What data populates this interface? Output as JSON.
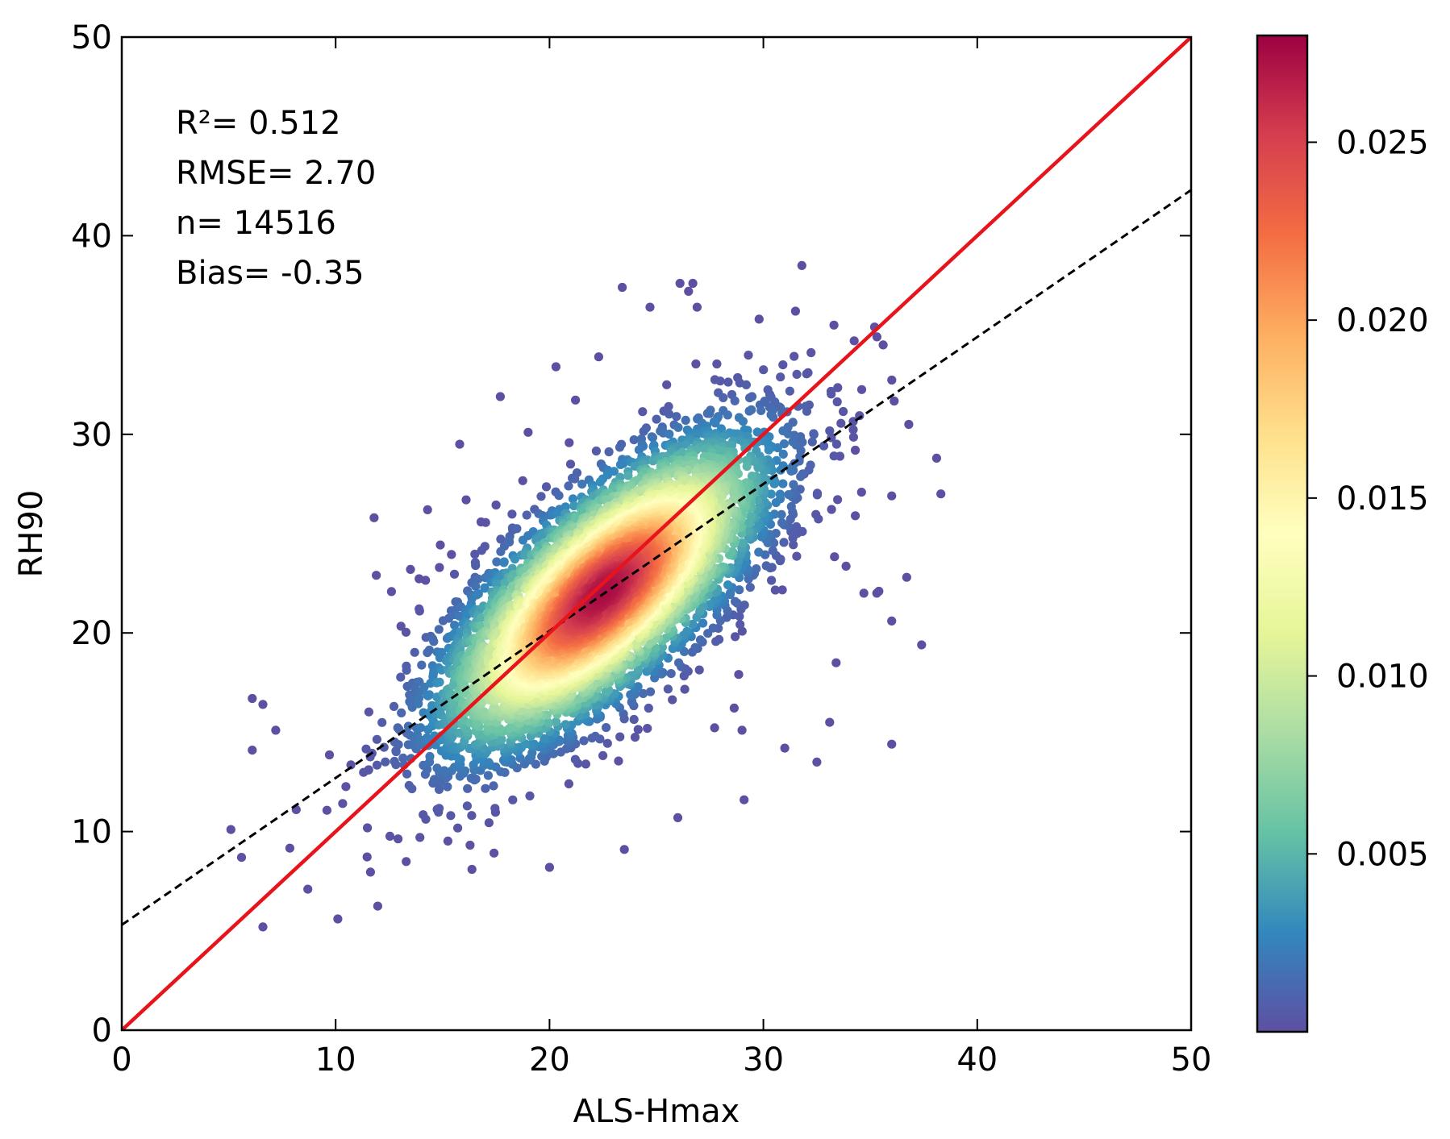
{
  "chart_data": {
    "type": "scatter",
    "xlabel": "ALS-Hmax",
    "ylabel": "RH90",
    "xlim": [
      0,
      50
    ],
    "ylim": [
      0,
      50
    ],
    "x_ticks": [
      0,
      10,
      20,
      30,
      40,
      50
    ],
    "y_ticks": [
      0,
      10,
      20,
      30,
      40,
      50
    ],
    "x_tick_labels": [
      "0",
      "10",
      "20",
      "30",
      "40",
      "50"
    ],
    "y_tick_labels": [
      "0",
      "10",
      "20",
      "30",
      "40",
      "50"
    ],
    "annotations": [
      "R²= 0.512",
      "RMSE= 2.70",
      "n= 14516",
      "Bias= -0.35"
    ],
    "n_points": 14516,
    "density_center": {
      "x": 22.5,
      "y": 22.0
    },
    "density_spread": {
      "sd_x": 3.8,
      "sd_y": 3.9,
      "correlation": 0.72
    },
    "reference_line": {
      "name": "1:1 line",
      "x": [
        0,
        50
      ],
      "y": [
        0,
        50
      ],
      "color": "#e8141c",
      "style": "solid"
    },
    "fit_line": {
      "name": "regression fit",
      "slope": 0.74,
      "intercept": 5.3,
      "x": [
        0,
        50
      ],
      "y": [
        5.3,
        42.3
      ],
      "color": "#000000",
      "style": "dashed"
    },
    "colorbar": {
      "label": "",
      "min": 0.0,
      "max": 0.028,
      "ticks": [
        0.005,
        0.01,
        0.015,
        0.02,
        0.025
      ],
      "tick_labels": [
        "0.005",
        "0.010",
        "0.015",
        "0.020",
        "0.025"
      ],
      "colormap": "Spectral_r",
      "colors": [
        "#5e4fa2",
        "#3288bd",
        "#66c2a5",
        "#abdda4",
        "#e6f598",
        "#ffffbf",
        "#fee08b",
        "#fdae61",
        "#f46d43",
        "#d53e4f",
        "#9e0142"
      ]
    },
    "outlier_points": [
      [
        31.8,
        38.5
      ],
      [
        23.4,
        37.4
      ],
      [
        26.1,
        37.6
      ],
      [
        26.7,
        37.6
      ],
      [
        26.5,
        37.2
      ],
      [
        26.9,
        36.4
      ],
      [
        24.7,
        36.4
      ],
      [
        31.5,
        36.2
      ],
      [
        29.8,
        35.8
      ],
      [
        35.2,
        35.4
      ],
      [
        33.3,
        35.5
      ],
      [
        35.6,
        34.5
      ],
      [
        36.8,
        30.5
      ],
      [
        38.1,
        28.8
      ],
      [
        38.3,
        27.0
      ],
      [
        36.0,
        26.9
      ],
      [
        36.7,
        22.8
      ],
      [
        34.7,
        22.0
      ],
      [
        35.3,
        22.0
      ],
      [
        36.0,
        20.6
      ],
      [
        37.4,
        19.4
      ],
      [
        33.4,
        18.5
      ],
      [
        36.0,
        14.4
      ],
      [
        33.1,
        15.5
      ],
      [
        32.5,
        13.5
      ],
      [
        31.0,
        14.2
      ],
      [
        29.0,
        15.1
      ],
      [
        29.1,
        11.6
      ],
      [
        26.0,
        10.7
      ],
      [
        23.5,
        9.1
      ],
      [
        20.0,
        8.2
      ],
      [
        10.1,
        5.6
      ],
      [
        6.6,
        5.2
      ],
      [
        8.7,
        7.1
      ],
      [
        5.1,
        10.1
      ],
      [
        5.6,
        8.7
      ],
      [
        6.1,
        16.7
      ],
      [
        6.6,
        16.4
      ],
      [
        6.1,
        14.1
      ],
      [
        7.2,
        15.1
      ],
      [
        11.8,
        25.8
      ],
      [
        11.9,
        22.9
      ],
      [
        15.8,
        29.5
      ],
      [
        17.7,
        31.9
      ],
      [
        20.3,
        33.4
      ],
      [
        22.3,
        33.9
      ],
      [
        19.0,
        30.1
      ],
      [
        16.1,
        26.7
      ],
      [
        14.3,
        26.2
      ],
      [
        13.5,
        23.2
      ],
      [
        35.4,
        22.1
      ],
      [
        34.3,
        25.9
      ],
      [
        34.3,
        29.2
      ],
      [
        31.9,
        28.0
      ],
      [
        30.3,
        32.0
      ]
    ]
  }
}
